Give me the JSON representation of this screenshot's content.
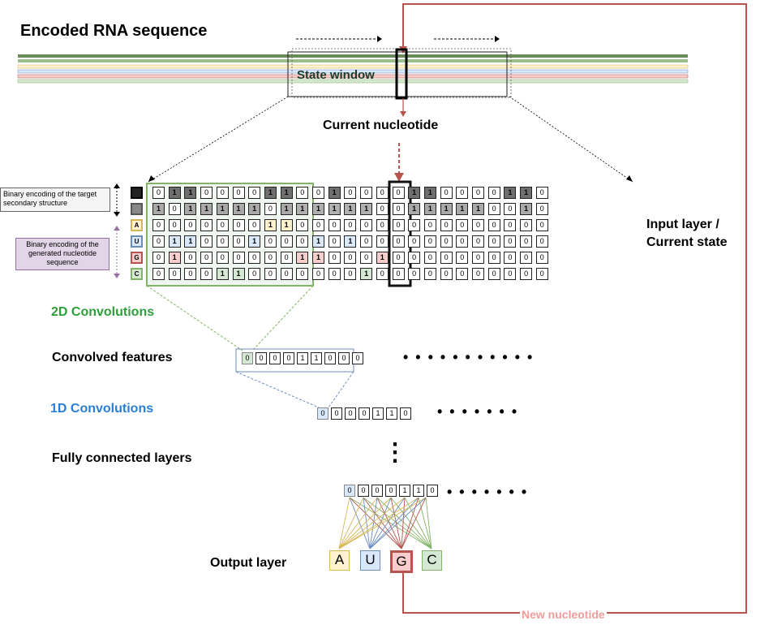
{
  "title": "Encoded RNA sequence",
  "state_window_label": "State window",
  "current_nucleotide_label": "Current nucleotide",
  "input_layer_label": "Input layer /\nCurrent state",
  "note_structure": "Binary encoding of the target secondary structure",
  "note_sequence": "Binary encoding of the generated nucleotide sequence",
  "conv2d_label": "2D Convolutions",
  "convolved_label": "Convolved features",
  "conv1d_label": "1D Convolutions",
  "fc_label": "Fully connected layers",
  "output_label": "Output layer",
  "new_nucleotide_label": "New nucleotide",
  "legend_keys": [
    "",
    "",
    "A",
    "U",
    "G",
    "C"
  ],
  "colors": {
    "dark_green": "#6a8a5a",
    "green": "#9bc08a",
    "yellow": "#fff2cc",
    "blue": "#dae8fc",
    "red": "#f8cecc",
    "light_green": "#d5e8d4",
    "accent_red": "#b85450",
    "conv2d_green": "#2e9e3a",
    "conv1d_blue": "#2a7fd4",
    "new_nucleotide": "#f19c99"
  },
  "grid_rows": [
    "0110000110010000110000110",
    "1011111011111100111110010",
    "0000000110000000000000000",
    "0110001000101000000000000",
    "0100000001100010000000000",
    "0000110000000100000000000"
  ],
  "convolved_features": [
    "0",
    "0",
    "0",
    "0",
    "1",
    "1",
    "0",
    "0",
    "0"
  ],
  "conv1d_values": [
    "0",
    "0",
    "0",
    "0",
    "1",
    "1",
    "0"
  ],
  "fc_values": [
    "0",
    "0",
    "0",
    "0",
    "1",
    "1",
    "0"
  ],
  "outputs": [
    "A",
    "U",
    "G",
    "C"
  ],
  "dots": {
    "convolved": "• • • • • • • • • • •",
    "conv1d": "• • • • • • •",
    "fc_vertical": "⋮",
    "fc": "• • • • • • •"
  }
}
